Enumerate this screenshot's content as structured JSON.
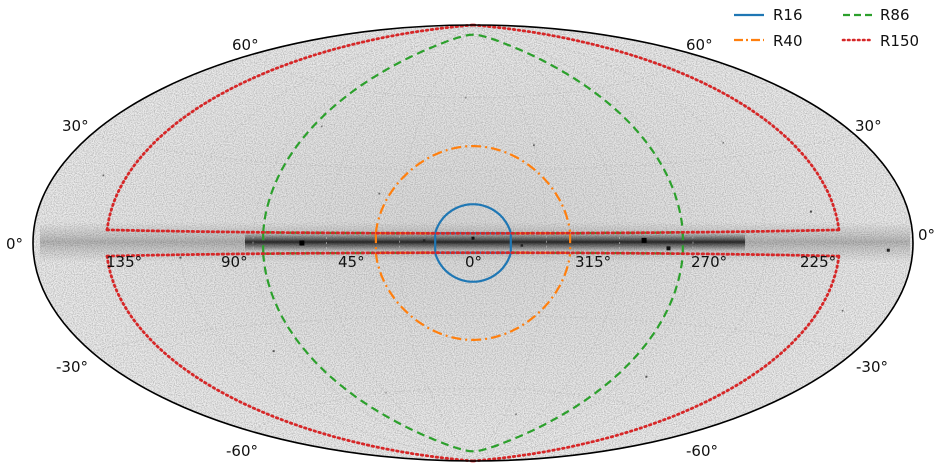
{
  "map": {
    "projection": "aitoff",
    "coordinate_frame": "galactic",
    "background": "grayscale counts map, bright Galactic plane",
    "tick_labels": {
      "lat_left": [
        "60°",
        "30°",
        "0°",
        "-30°",
        "-60°"
      ],
      "lat_right": [
        "60°",
        "30°",
        "0°",
        "-30°",
        "-60°"
      ],
      "lon": [
        "135°",
        "90°",
        "45°",
        "0°",
        "315°",
        "270°",
        "225°"
      ]
    },
    "lon_values": [
      135,
      90,
      45,
      0,
      315,
      270,
      225
    ],
    "lat_values": [
      60,
      30,
      0,
      -30,
      -60
    ]
  },
  "legend": {
    "placement": "top-right",
    "entries": [
      {
        "label": "R16",
        "color": "#1f77b4",
        "style": "solid"
      },
      {
        "label": "R40",
        "color": "#ff7f0e",
        "style": "dashdot"
      },
      {
        "label": "R86",
        "color": "#2ca02c",
        "style": "dashed"
      },
      {
        "label": "R150",
        "color": "#d62728",
        "style": "dotted"
      }
    ]
  },
  "regions": [
    {
      "name": "R16",
      "description": "circle radius 16° with |b| > 4° band excluded",
      "color": "#1f77b4"
    },
    {
      "name": "R40",
      "description": "circle radius 40° with |b| > 4° band excluded",
      "color": "#ff7f0e"
    },
    {
      "name": "R86",
      "description": "circle radius 86° with |b| > 4° band excluded",
      "color": "#2ca02c"
    },
    {
      "name": "R150",
      "description": "|l| < 150° with |b| > 4° band excluded",
      "color": "#d62728"
    }
  ]
}
